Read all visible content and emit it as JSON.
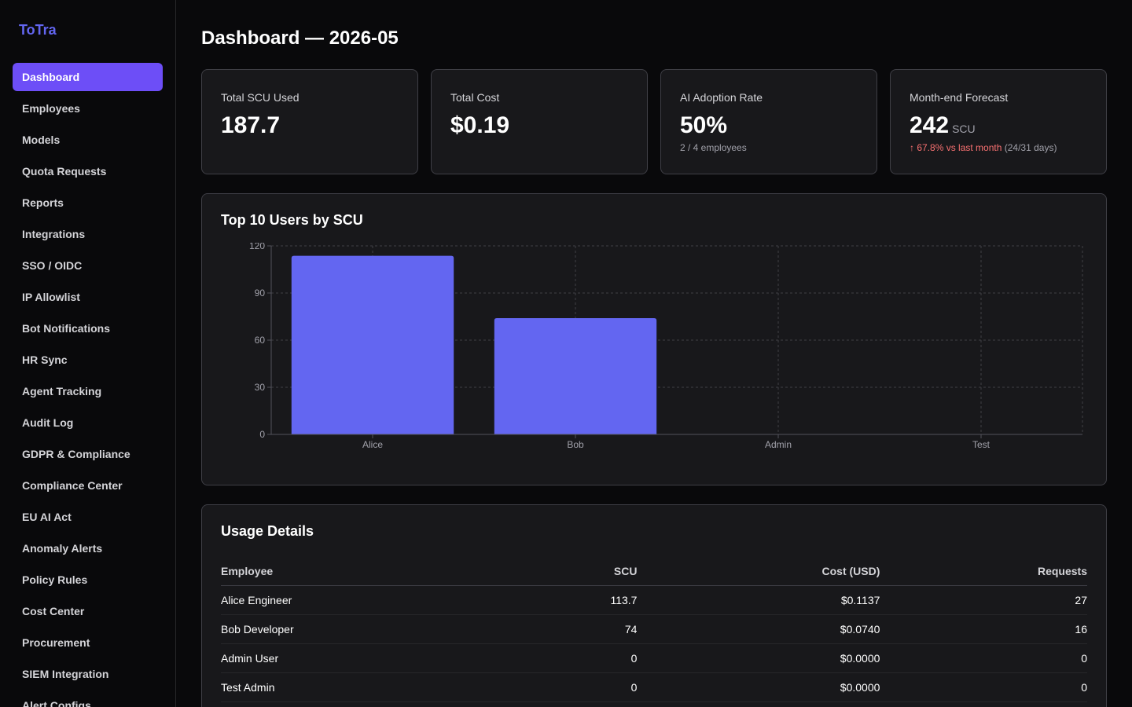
{
  "app": {
    "name": "ToTra"
  },
  "sidebar": {
    "items": [
      {
        "label": "Dashboard",
        "active": true
      },
      {
        "label": "Employees"
      },
      {
        "label": "Models"
      },
      {
        "label": "Quota Requests"
      },
      {
        "label": "Reports"
      },
      {
        "label": "Integrations"
      },
      {
        "label": "SSO / OIDC"
      },
      {
        "label": "IP Allowlist"
      },
      {
        "label": "Bot Notifications"
      },
      {
        "label": "HR Sync"
      },
      {
        "label": "Agent Tracking"
      },
      {
        "label": "Audit Log"
      },
      {
        "label": "GDPR & Compliance"
      },
      {
        "label": "Compliance Center"
      },
      {
        "label": "EU AI Act"
      },
      {
        "label": "Anomaly Alerts"
      },
      {
        "label": "Policy Rules"
      },
      {
        "label": "Cost Center"
      },
      {
        "label": "Procurement"
      },
      {
        "label": "SIEM Integration"
      },
      {
        "label": "Alert Configs"
      }
    ]
  },
  "header": {
    "title": "Dashboard — 2026-05"
  },
  "stats": {
    "scu": {
      "label": "Total SCU Used",
      "value": "187.7"
    },
    "cost": {
      "label": "Total Cost",
      "value": "$0.19"
    },
    "adoption": {
      "label": "AI Adoption Rate",
      "value": "50%",
      "sub": "2 / 4 employees"
    },
    "forecast": {
      "label": "Month-end Forecast",
      "value": "242",
      "unit": "SCU",
      "change": "↑ 67.8% vs last month",
      "period": "(24/31 days)"
    }
  },
  "chart": {
    "title": "Top 10 Users by SCU"
  },
  "chart_data": {
    "type": "bar",
    "title": "Top 10 Users by SCU",
    "categories": [
      "Alice",
      "Bob",
      "Admin",
      "Test"
    ],
    "values": [
      113.7,
      74,
      0,
      0
    ],
    "ylim": [
      0,
      120
    ],
    "yticks": [
      0,
      30,
      60,
      90,
      120
    ],
    "grid": true,
    "bar_color": "#6366f1"
  },
  "table": {
    "title": "Usage Details",
    "columns": [
      "Employee",
      "SCU",
      "Cost (USD)",
      "Requests"
    ],
    "rows": [
      [
        "Alice Engineer",
        "113.7",
        "$0.1137",
        "27"
      ],
      [
        "Bob Developer",
        "74",
        "$0.0740",
        "16"
      ],
      [
        "Admin User",
        "0",
        "$0.0000",
        "0"
      ],
      [
        "Test Admin",
        "0",
        "$0.0000",
        "0"
      ]
    ]
  }
}
